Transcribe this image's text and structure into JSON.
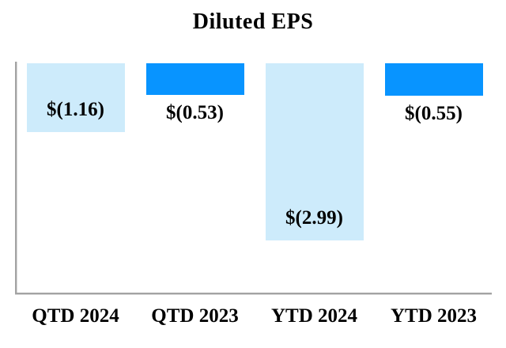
{
  "chart_data": {
    "type": "bar",
    "title": "Diluted EPS",
    "categories": [
      "QTD 2024",
      "QTD 2023",
      "YTD 2024",
      "YTD 2023"
    ],
    "values": [
      -1.16,
      -0.53,
      -2.99,
      -0.55
    ],
    "data_labels": [
      "$(1.16)",
      "$(0.53)",
      "$(2.99)",
      "$(0.55)"
    ],
    "bar_colors": [
      "#CDEBFB",
      "#0894FF",
      "#CDEBFB",
      "#0894FF"
    ],
    "axis_color": "#A3A3A3",
    "text_color": "#000000",
    "xlabel": "",
    "ylabel": "",
    "ylim": [
      -4,
      0
    ],
    "baseline": "top",
    "grid": false,
    "legend": false
  }
}
